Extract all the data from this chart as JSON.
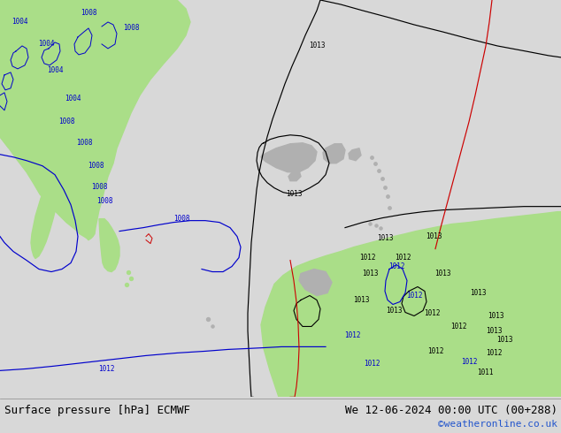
{
  "title_left": "Surface pressure [hPa] ECMWF",
  "title_right": "We 12-06-2024 00:00 UTC (00+288)",
  "credit": "©weatheronline.co.uk",
  "bg_color": "#d8d8d8",
  "land_color": "#aade88",
  "gray_land_color": "#b0b0b0",
  "bottom_bar_color": "#ffffff",
  "title_fontsize": 9,
  "credit_color": "#2255cc",
  "credit_fontsize": 8,
  "blue_line_color": "#0000cc",
  "black_line_color": "#000000",
  "red_line_color": "#cc0000",
  "label_fontsize": 5.5
}
